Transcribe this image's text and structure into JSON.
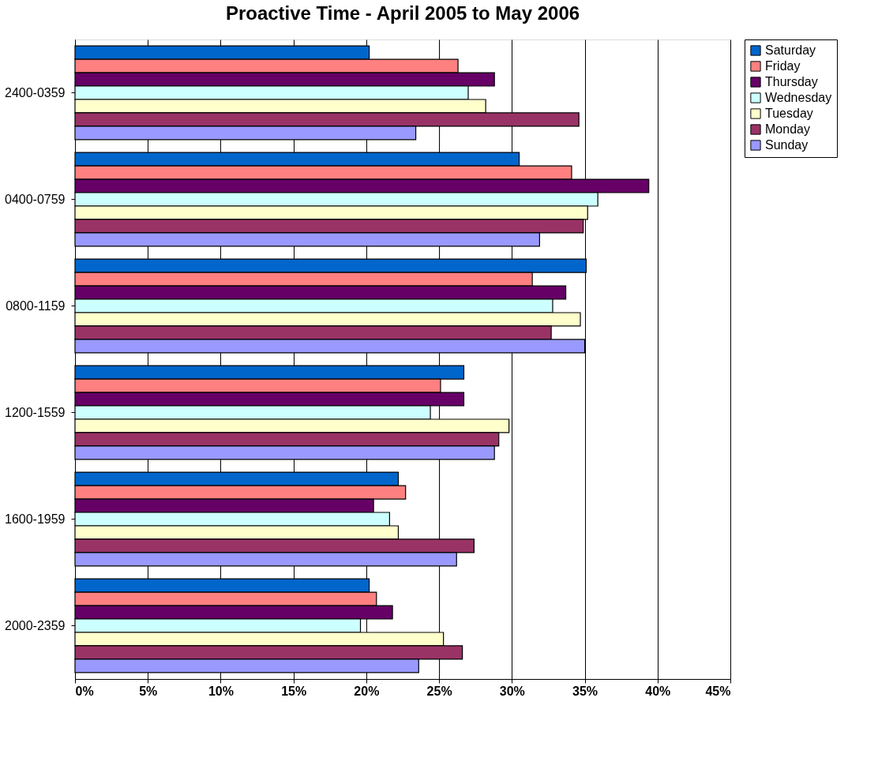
{
  "chart_data": {
    "type": "bar",
    "orientation": "horizontal",
    "title": "Proactive Time - April 2005 to May 2006",
    "categories": [
      "2400-0359",
      "0400-0759",
      "0800-1159",
      "1200-1559",
      "1600-1959",
      "2000-2359"
    ],
    "series": [
      {
        "name": "Saturday",
        "color": "#0066cc",
        "values": [
          20.2,
          30.5,
          35.1,
          26.7,
          22.2,
          20.2
        ]
      },
      {
        "name": "Friday",
        "color": "#ff8080",
        "values": [
          26.3,
          34.1,
          31.4,
          25.1,
          22.7,
          20.7
        ]
      },
      {
        "name": "Thursday",
        "color": "#660066",
        "values": [
          28.8,
          39.4,
          33.7,
          26.7,
          20.5,
          21.8
        ]
      },
      {
        "name": "Wednesday",
        "color": "#ccffff",
        "values": [
          27.0,
          35.9,
          32.8,
          24.4,
          21.6,
          19.6
        ]
      },
      {
        "name": "Tuesday",
        "color": "#ffffcc",
        "values": [
          28.2,
          35.2,
          34.7,
          29.8,
          22.2,
          25.3
        ]
      },
      {
        "name": "Monday",
        "color": "#993366",
        "values": [
          34.6,
          34.9,
          32.7,
          29.1,
          27.4,
          26.6
        ]
      },
      {
        "name": "Sunday",
        "color": "#9999ff",
        "values": [
          23.4,
          31.9,
          35.0,
          28.8,
          26.2,
          23.6
        ]
      }
    ],
    "xlim": [
      0,
      45
    ],
    "xticks": [
      {
        "value": 0,
        "label": "0%"
      },
      {
        "value": 5,
        "label": "5%"
      },
      {
        "value": 10,
        "label": "10%"
      },
      {
        "value": 15,
        "label": "15%"
      },
      {
        "value": 20,
        "label": "20%"
      },
      {
        "value": 25,
        "label": "25%"
      },
      {
        "value": 30,
        "label": "30%"
      },
      {
        "value": 35,
        "label": "35%"
      },
      {
        "value": 40,
        "label": "40%"
      },
      {
        "value": 45,
        "label": "45%"
      }
    ],
    "grid": "x",
    "legend": "right"
  }
}
